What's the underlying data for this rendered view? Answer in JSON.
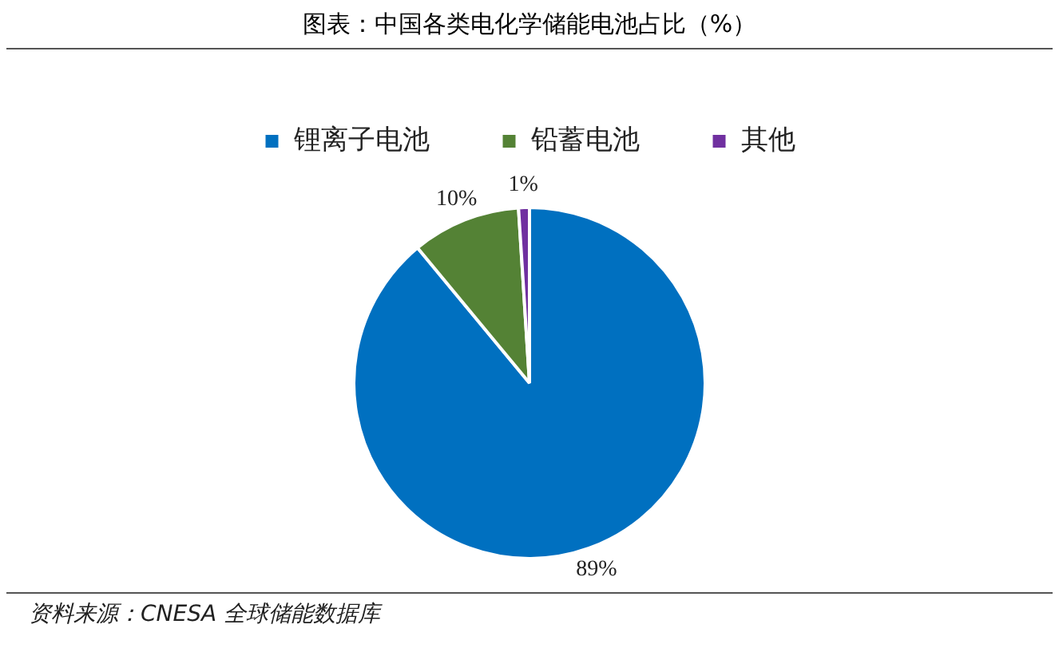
{
  "chart_data": {
    "type": "pie",
    "title": "图表：中国各类电化学储能电池占比（%）",
    "categories": [
      "锂离子电池",
      "铅蓄电池",
      "其他"
    ],
    "values": [
      89,
      10,
      1
    ],
    "colors": [
      "#0070c0",
      "#548235",
      "#7030a0"
    ],
    "value_labels": [
      "89%",
      "10%",
      "1%"
    ],
    "legend": "top",
    "annotations": [
      "资料来源：CNESA 全球储能数据库"
    ]
  }
}
